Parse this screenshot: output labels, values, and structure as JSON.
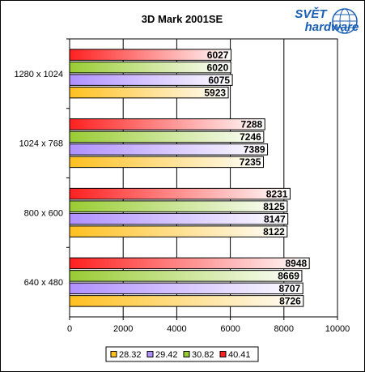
{
  "chart_data": {
    "type": "bar",
    "orientation": "horizontal",
    "title": "3D Mark 2001SE",
    "categories": [
      "1280 x 1024",
      "1024 x 768",
      "800 x 600",
      "640 x 480"
    ],
    "series": [
      {
        "name": "40.41",
        "color": "#ff2020",
        "values": [
          6027,
          7288,
          8231,
          8948
        ]
      },
      {
        "name": "30.82",
        "color": "#99cc33",
        "values": [
          6020,
          7246,
          8125,
          8669
        ]
      },
      {
        "name": "29.42",
        "color": "#b090ff",
        "values": [
          6075,
          7389,
          8147,
          8707
        ]
      },
      {
        "name": "28.32",
        "color": "#ffc020",
        "values": [
          5923,
          7235,
          8122,
          8726
        ]
      }
    ],
    "xlim": [
      0,
      10000
    ],
    "xticks": [
      0,
      2000,
      4000,
      6000,
      8000,
      10000
    ],
    "grid": true,
    "legend_position": "bottom",
    "legend_order": [
      "28.32",
      "29.42",
      "30.82",
      "40.41"
    ]
  },
  "logo": {
    "top": "SVĚT",
    "bottom": "hardware",
    "color": "#1a5fb4"
  }
}
